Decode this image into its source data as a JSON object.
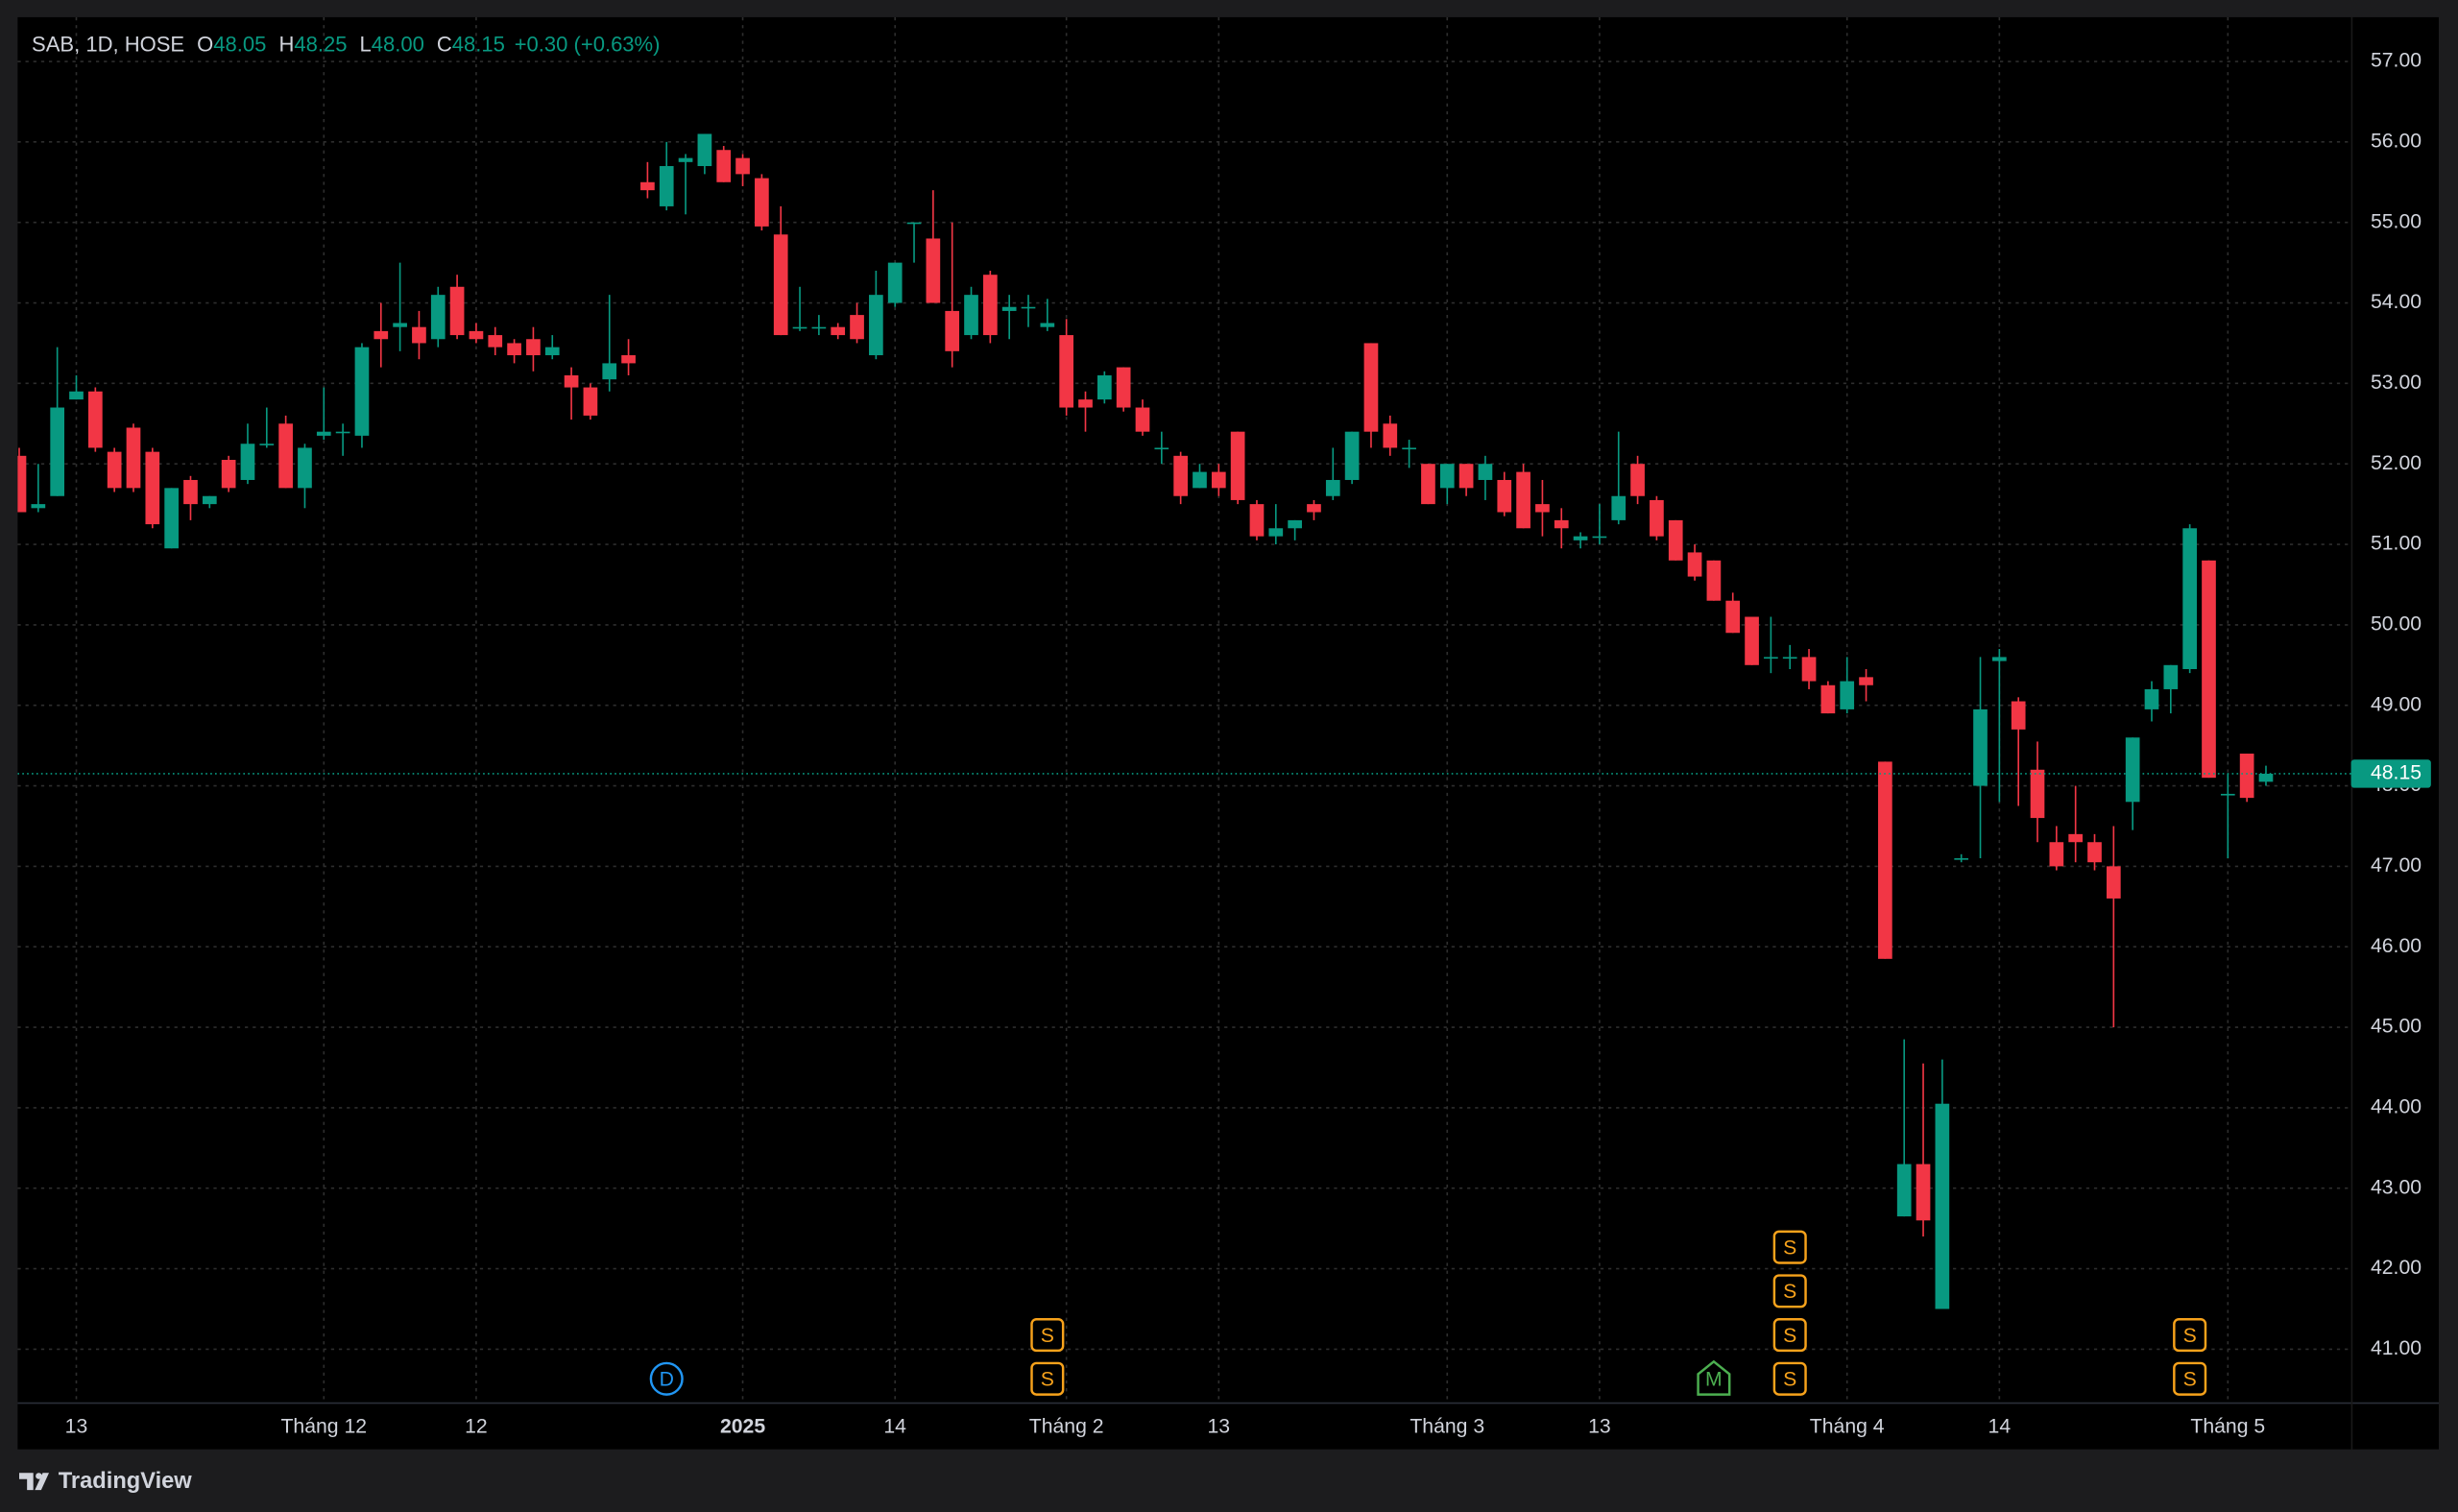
{
  "chart_data": {
    "type": "candlestick",
    "legend": {
      "title": "SAB, 1D, HOSE",
      "ohlc": [
        {
          "key": "O",
          "value": "48.05"
        },
        {
          "key": "H",
          "value": "48.25"
        },
        {
          "key": "L",
          "value": "48.00"
        },
        {
          "key": "C",
          "value": "48.15"
        }
      ],
      "change": "+0.30 (+0.63%)"
    },
    "up_color": "#089981",
    "down_color": "#f23645",
    "grid": true,
    "categories": [
      null,
      null,
      null,
      "13",
      null,
      null,
      null,
      null,
      null,
      null,
      null,
      null,
      null,
      null,
      null,
      null,
      "Tháng 12",
      null,
      null,
      null,
      null,
      null,
      null,
      null,
      "12",
      null,
      null,
      null,
      null,
      null,
      null,
      null,
      null,
      null,
      null,
      null,
      null,
      null,
      "2025",
      null,
      null,
      null,
      null,
      null,
      null,
      null,
      "14",
      null,
      null,
      null,
      null,
      null,
      null,
      null,
      null,
      "Tháng 2",
      null,
      null,
      null,
      null,
      null,
      null,
      null,
      "13",
      null,
      null,
      null,
      null,
      null,
      null,
      null,
      null,
      null,
      null,
      null,
      "Tháng 3",
      null,
      null,
      null,
      null,
      null,
      null,
      null,
      "13",
      null,
      null,
      null,
      null,
      null,
      null,
      null,
      null,
      null,
      null,
      null,
      null,
      "Tháng 4",
      null,
      null,
      null,
      null,
      null,
      null,
      null,
      "14",
      null,
      null,
      null,
      null,
      null,
      null,
      null,
      null,
      null,
      null,
      null,
      "Tháng 5",
      null,
      null
    ],
    "open": [
      52.1,
      51.45,
      51.6,
      52.8,
      52.9,
      52.15,
      52.45,
      52.15,
      50.95,
      51.8,
      51.5,
      52.05,
      51.8,
      52.25,
      52.5,
      51.7,
      52.35,
      52.4,
      52.35,
      53.65,
      53.7,
      53.7,
      53.55,
      54.2,
      53.65,
      53.6,
      53.5,
      53.55,
      53.35,
      53.1,
      52.95,
      53.05,
      53.35,
      55.5,
      55.2,
      55.75,
      55.7,
      55.9,
      55.8,
      55.55,
      54.85,
      53.7,
      53.7,
      53.7,
      53.85,
      53.35,
      54.0,
      55.0,
      54.8,
      53.9,
      53.6,
      54.35,
      53.9,
      53.95,
      53.7,
      53.6,
      52.8,
      52.8,
      53.2,
      52.7,
      52.2,
      52.1,
      51.7,
      51.9,
      52.4,
      51.5,
      51.1,
      51.2,
      51.5,
      51.6,
      51.8,
      53.5,
      52.5,
      52.2,
      52.0,
      51.7,
      52.0,
      51.8,
      51.8,
      51.9,
      51.5,
      51.3,
      51.05,
      51.1,
      51.3,
      52.0,
      51.55,
      51.3,
      50.9,
      50.8,
      50.3,
      50.1,
      49.6,
      49.6,
      49.6,
      49.25,
      48.95,
      49.35,
      48.3,
      42.65,
      43.3,
      41.5,
      47.1,
      48.0,
      49.55,
      49.05,
      48.2,
      47.3,
      47.4,
      47.3,
      47.0,
      47.8,
      48.95,
      49.2,
      49.45,
      50.8,
      47.9,
      48.4,
      48.05
    ],
    "high": [
      52.2,
      52.0,
      53.45,
      53.1,
      52.95,
      52.2,
      52.5,
      52.2,
      51.7,
      51.85,
      51.6,
      52.1,
      52.5,
      52.7,
      52.6,
      52.25,
      52.95,
      52.5,
      53.5,
      54.0,
      54.5,
      53.9,
      54.2,
      54.35,
      53.75,
      53.7,
      53.55,
      53.7,
      53.6,
      53.2,
      53.0,
      54.1,
      53.55,
      55.75,
      56.0,
      55.85,
      56.1,
      55.95,
      55.85,
      55.6,
      55.2,
      54.2,
      53.85,
      53.75,
      54.0,
      54.4,
      54.5,
      55.0,
      55.4,
      55.0,
      54.2,
      54.4,
      54.1,
      54.1,
      54.05,
      53.8,
      52.9,
      53.15,
      53.2,
      52.8,
      52.4,
      52.15,
      52.0,
      52.0,
      52.4,
      51.55,
      51.5,
      51.3,
      51.55,
      52.2,
      52.4,
      53.5,
      52.6,
      52.3,
      52.0,
      52.0,
      52.0,
      52.1,
      51.9,
      52.0,
      51.8,
      51.45,
      51.15,
      51.5,
      52.4,
      52.1,
      51.6,
      51.3,
      51.0,
      50.8,
      50.4,
      50.1,
      50.1,
      49.75,
      49.7,
      49.3,
      49.6,
      49.45,
      48.3,
      44.85,
      44.55,
      44.6,
      47.15,
      49.6,
      49.7,
      49.1,
      48.55,
      47.5,
      48.0,
      47.4,
      47.5,
      48.6,
      49.3,
      49.5,
      51.25,
      50.8,
      48.15,
      48.4,
      48.25
    ],
    "low": [
      51.4,
      51.4,
      51.6,
      52.8,
      52.15,
      51.65,
      51.65,
      51.2,
      50.95,
      51.3,
      51.45,
      51.65,
      51.75,
      52.2,
      51.7,
      51.45,
      52.3,
      52.1,
      52.2,
      53.2,
      53.4,
      53.3,
      53.45,
      53.55,
      53.5,
      53.35,
      53.25,
      53.15,
      53.3,
      52.55,
      52.55,
      52.9,
      53.1,
      55.3,
      55.15,
      55.1,
      55.6,
      55.5,
      55.45,
      54.9,
      53.6,
      53.65,
      53.6,
      53.55,
      53.5,
      53.3,
      53.95,
      54.5,
      54.0,
      53.2,
      53.55,
      53.5,
      53.55,
      53.7,
      53.65,
      52.6,
      52.4,
      52.75,
      52.65,
      52.35,
      52.0,
      51.5,
      51.7,
      51.6,
      51.5,
      51.05,
      51.0,
      51.05,
      51.3,
      51.55,
      51.75,
      52.2,
      52.1,
      51.95,
      51.5,
      51.5,
      51.6,
      51.55,
      51.35,
      51.2,
      51.1,
      50.95,
      50.95,
      51.0,
      51.25,
      51.5,
      51.05,
      50.8,
      50.55,
      50.3,
      49.9,
      49.5,
      49.4,
      49.45,
      49.2,
      48.9,
      48.9,
      49.05,
      45.85,
      42.65,
      42.4,
      41.5,
      47.05,
      47.1,
      47.8,
      47.75,
      47.3,
      46.95,
      47.05,
      46.95,
      45.0,
      47.45,
      48.8,
      48.9,
      49.4,
      48.1,
      47.1,
      47.8,
      48.0
    ],
    "close": [
      51.4,
      51.5,
      52.7,
      52.9,
      52.2,
      51.7,
      51.7,
      51.25,
      51.7,
      51.5,
      51.6,
      51.7,
      52.25,
      52.25,
      51.7,
      52.2,
      52.4,
      52.4,
      53.45,
      53.55,
      53.75,
      53.5,
      54.1,
      53.6,
      53.55,
      53.45,
      53.35,
      53.35,
      53.45,
      52.95,
      52.6,
      53.25,
      53.25,
      55.4,
      55.7,
      55.8,
      56.1,
      55.5,
      55.6,
      54.95,
      53.6,
      53.7,
      53.7,
      53.6,
      53.55,
      54.1,
      54.5,
      55.0,
      54.0,
      53.4,
      54.1,
      53.6,
      53.95,
      53.95,
      53.75,
      52.7,
      52.7,
      53.1,
      52.7,
      52.4,
      52.2,
      51.6,
      51.9,
      51.7,
      51.55,
      51.1,
      51.2,
      51.3,
      51.4,
      51.8,
      52.4,
      52.4,
      52.2,
      52.2,
      51.5,
      52.0,
      51.7,
      52.0,
      51.4,
      51.2,
      51.4,
      51.2,
      51.1,
      51.1,
      51.6,
      51.6,
      51.1,
      50.8,
      50.6,
      50.3,
      49.9,
      49.5,
      49.6,
      49.6,
      49.3,
      48.9,
      49.3,
      49.25,
      45.85,
      43.3,
      42.6,
      44.05,
      47.1,
      48.95,
      49.6,
      48.7,
      47.6,
      47.0,
      47.3,
      47.05,
      46.6,
      48.6,
      49.2,
      49.5,
      51.2,
      48.1,
      47.9,
      47.85,
      48.15
    ],
    "ylim": [
      40.34,
      57.53
    ],
    "yticks": [
      {
        "value": 41,
        "label": "41.00"
      },
      {
        "value": 42,
        "label": "42.00"
      },
      {
        "value": 43,
        "label": "43.00"
      },
      {
        "value": 44,
        "label": "44.00"
      },
      {
        "value": 45,
        "label": "45.00"
      },
      {
        "value": 46,
        "label": "46.00"
      },
      {
        "value": 47,
        "label": "47.00"
      },
      {
        "value": 48,
        "label": "48.00"
      },
      {
        "value": 49,
        "label": "49.00"
      },
      {
        "value": 50,
        "label": "50.00"
      },
      {
        "value": 51,
        "label": "51.00"
      },
      {
        "value": 52,
        "label": "52.00"
      },
      {
        "value": 53,
        "label": "53.00"
      },
      {
        "value": 54,
        "label": "54.00"
      },
      {
        "value": 55,
        "label": "55.00"
      },
      {
        "value": 56,
        "label": "56.00"
      },
      {
        "value": 57,
        "label": "57.00"
      }
    ],
    "last_price": 48.15,
    "events": [
      {
        "at": 34,
        "shape": "circle",
        "color": "#2196f3",
        "labels": [
          "D"
        ]
      },
      {
        "at": 54,
        "shape": "square",
        "color": "#f7a21b",
        "labels": [
          "S",
          "S"
        ]
      },
      {
        "at": 89,
        "shape": "pentagon",
        "color": "#4caf50",
        "labels": [
          "M"
        ]
      },
      {
        "at": 93,
        "shape": "square",
        "color": "#f7a21b",
        "labels": [
          "S",
          "S",
          "S",
          "S"
        ]
      },
      {
        "at": 114,
        "shape": "square",
        "color": "#f7a21b",
        "labels": [
          "S",
          "S"
        ]
      }
    ]
  },
  "footer": {
    "brand": "TradingView"
  }
}
